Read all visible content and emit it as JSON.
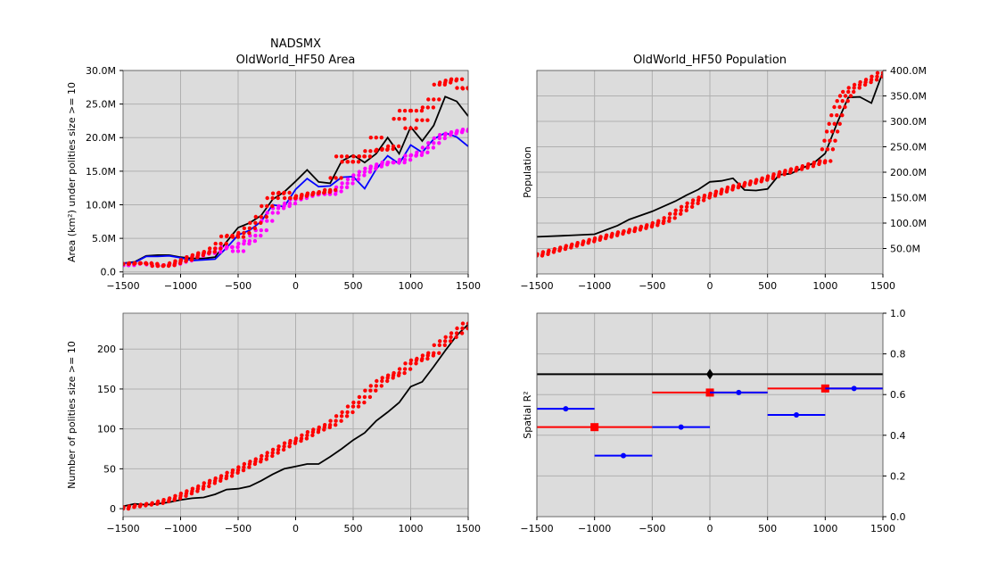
{
  "chart_data": [
    {
      "type": "line",
      "title": "NADSMX",
      "subtitle": "OldWorld_HF50 Area",
      "ylabel": "Area (km$^2$) under polities size >= 10",
      "xlim": [
        -1500,
        1500
      ],
      "ylim": [
        -300000,
        30000000
      ],
      "xticks": [
        -1500,
        -1000,
        -500,
        0,
        500,
        1000,
        1500
      ],
      "yticks": [
        0,
        5000000,
        10000000,
        15000000,
        20000000,
        25000000,
        30000000
      ],
      "yticklabels": [
        "0.0",
        "5.0M",
        "10.0M",
        "15.0M",
        "20.0M",
        "25.0M",
        "30.0M"
      ],
      "grid": true,
      "series": [
        {
          "color": "#000000",
          "style": "line",
          "x": [
            -1500,
            -1400,
            -1300,
            -1200,
            -1100,
            -1000,
            -900,
            -800,
            -700,
            -600,
            -500,
            -400,
            -300,
            -200,
            -100,
            0,
            100,
            200,
            300,
            400,
            500,
            600,
            700,
            800,
            900,
            1000,
            1100,
            1200,
            1300,
            1400,
            1500
          ],
          "y": [
            1300000,
            1500000,
            2400000,
            2500000,
            2500000,
            2200000,
            2000000,
            2000000,
            2200000,
            4500000,
            6600000,
            7300000,
            8400000,
            10800000,
            11900000,
            13500000,
            15200000,
            13400000,
            13200000,
            16500000,
            17400000,
            16300000,
            17600000,
            20000000,
            17600000,
            21600000,
            19500000,
            21800000,
            26100000,
            25400000,
            23200000
          ]
        },
        {
          "color": "#0000ff",
          "style": "line",
          "x": [
            -1500,
            -1400,
            -1300,
            -1200,
            -1100,
            -1000,
            -900,
            -800,
            -700,
            -600,
            -500,
            -400,
            -300,
            -200,
            -100,
            0,
            100,
            200,
            300,
            400,
            500,
            600,
            700,
            800,
            900,
            1000,
            1100,
            1200,
            1300,
            1400,
            1500
          ],
          "y": [
            1300000,
            1400000,
            2300000,
            2300000,
            2400000,
            2100000,
            1700000,
            1800000,
            1900000,
            3600000,
            5500000,
            6200000,
            7500000,
            10000000,
            9700000,
            12300000,
            13900000,
            12700000,
            12800000,
            14100000,
            14200000,
            12400000,
            15300000,
            17300000,
            16100000,
            18900000,
            17800000,
            19800000,
            20700000,
            20100000,
            18700000
          ]
        },
        {
          "color": "#ff00ff",
          "style": "dots",
          "x": [
            -1500,
            -1450,
            -1400,
            -1350,
            -1300,
            -1250,
            -1200,
            -1150,
            -1100,
            -1050,
            -1000,
            -950,
            -900,
            -850,
            -800,
            -750,
            -700,
            -650,
            -600,
            -550,
            -500,
            -450,
            -400,
            -350,
            -300,
            -250,
            -200,
            -150,
            -100,
            -50,
            0,
            50,
            100,
            150,
            200,
            250,
            300,
            350,
            400,
            450,
            500,
            550,
            600,
            650,
            700,
            750,
            800,
            850,
            900,
            950,
            1000,
            1050,
            1100,
            1150,
            1200,
            1250,
            1300,
            1350,
            1400,
            1450,
            1500
          ],
          "y": [
            1000000,
            1000000,
            1200000,
            1300000,
            1300000,
            1100000,
            900000,
            1000000,
            1000000,
            1200000,
            1500000,
            1700000,
            2200000,
            2400000,
            2700000,
            2800000,
            3000000,
            3500000,
            3700000,
            3700000,
            3100000,
            4200000,
            4600000,
            5400000,
            6200000,
            7600000,
            8800000,
            9500000,
            9800000,
            10200000,
            10800000,
            11000000,
            11300000,
            11500000,
            11700000,
            11600000,
            11600000,
            12000000,
            12600000,
            13200000,
            13800000,
            14400000,
            14900000,
            15400000,
            15700000,
            16000000,
            16300000,
            16300000,
            16300000,
            16700000,
            17300000,
            17400000,
            17800000,
            18500000,
            19200000,
            19900000,
            20400000,
            20600000,
            20800000,
            21000000,
            21200000
          ]
        },
        {
          "color": "#ff0000",
          "style": "dots",
          "x": [
            -1500,
            -1450,
            -1400,
            -1350,
            -1300,
            -1250,
            -1200,
            -1150,
            -1100,
            -1050,
            -1000,
            -950,
            -900,
            -850,
            -800,
            -750,
            -700,
            -650,
            -600,
            -550,
            -500,
            -450,
            -400,
            -350,
            -300,
            -250,
            -200,
            -150,
            -100,
            -50,
            0,
            50,
            100,
            150,
            200,
            250,
            300,
            350,
            400,
            450,
            500,
            550,
            600,
            650,
            700,
            750,
            800,
            850,
            900,
            950,
            1000,
            1050,
            1100,
            1150,
            1200,
            1250,
            1300,
            1350,
            1400,
            1450,
            1500
          ],
          "y": [
            1200000,
            1200000,
            1300000,
            1300000,
            1300000,
            1200000,
            900000,
            900000,
            1000000,
            1300000,
            1600000,
            1800000,
            2200000,
            2500000,
            2800000,
            3000000,
            3500000,
            4200000,
            5300000,
            5400000,
            5200000,
            5800000,
            6500000,
            7300000,
            8200000,
            9800000,
            11000000,
            11700000,
            11800000,
            11000000,
            11000000,
            11300000,
            11500000,
            11700000,
            11800000,
            11900000,
            12200000,
            14000000,
            17200000,
            16400000,
            16400000,
            17200000,
            17200000,
            18000000,
            20000000,
            18200000,
            18300000,
            18700000,
            22800000,
            24000000,
            21400000,
            24000000,
            22600000,
            24500000,
            25700000,
            27900000,
            28200000,
            28500000,
            28700000,
            27400000,
            27300000
          ]
        }
      ]
    },
    {
      "type": "line",
      "title": "OldWorld_HF50 Population",
      "ylabel": "Population",
      "xlim": [
        -1500,
        1500
      ],
      "ylim": [
        0,
        400000000
      ],
      "xticks": [
        -1500,
        -1000,
        -500,
        0,
        500,
        1000,
        1500
      ],
      "yticks": [
        50000000,
        100000000,
        150000000,
        200000000,
        250000000,
        300000000,
        350000000,
        400000000
      ],
      "yticklabels": [
        "50.0M",
        "100.0M",
        "150.0M",
        "200.0M",
        "250.0M",
        "300.0M",
        "350.0M",
        "400.0M"
      ],
      "grid": true,
      "series": [
        {
          "color": "#000000",
          "style": "line",
          "x": [
            -1500,
            -1300,
            -1000,
            -800,
            -700,
            -500,
            -300,
            -200,
            -100,
            0,
            100,
            200,
            300,
            400,
            500,
            600,
            700,
            800,
            900,
            1000,
            1100,
            1200,
            1300,
            1400,
            1500
          ],
          "y": [
            73000000,
            75000000,
            78000000,
            95000000,
            107000000,
            123000000,
            143000000,
            155000000,
            166000000,
            181000000,
            183000000,
            188000000,
            165000000,
            164000000,
            167000000,
            195000000,
            197000000,
            208000000,
            218000000,
            237000000,
            295000000,
            347000000,
            348000000,
            336000000,
            397000000
          ]
        },
        {
          "color": "#ff0000",
          "style": "dots",
          "x": [
            -1500,
            -1450,
            -1400,
            -1350,
            -1300,
            -1250,
            -1200,
            -1150,
            -1100,
            -1050,
            -1000,
            -950,
            -900,
            -850,
            -800,
            -750,
            -700,
            -650,
            -600,
            -550,
            -500,
            -450,
            -400,
            -350,
            -300,
            -250,
            -200,
            -150,
            -100,
            -50,
            0,
            50,
            100,
            150,
            200,
            250,
            300,
            350,
            400,
            450,
            500,
            550,
            600,
            650,
            700,
            750,
            800,
            850,
            900,
            950,
            1000,
            1020,
            1040,
            1060,
            1080,
            1100,
            1125,
            1150,
            1175,
            1200,
            1250,
            1300,
            1350,
            1400,
            1450,
            1500
          ],
          "y": [
            36000000,
            39000000,
            43000000,
            46000000,
            49000000,
            52000000,
            55000000,
            58000000,
            61000000,
            64000000,
            67000000,
            70000000,
            73000000,
            76000000,
            79000000,
            82000000,
            84000000,
            87000000,
            90000000,
            93000000,
            96000000,
            100000000,
            104000000,
            110000000,
            118000000,
            125000000,
            132000000,
            139000000,
            145000000,
            150000000,
            154000000,
            158000000,
            162000000,
            166000000,
            170000000,
            173000000,
            176000000,
            179000000,
            182000000,
            185000000,
            188000000,
            192000000,
            196000000,
            200000000,
            203000000,
            206000000,
            209000000,
            212000000,
            216000000,
            219000000,
            222000000,
            245000000,
            262000000,
            280000000,
            295000000,
            312000000,
            328000000,
            340000000,
            350000000,
            358000000,
            366000000,
            372000000,
            377000000,
            382000000,
            388000000,
            395000000
          ]
        }
      ]
    },
    {
      "type": "line",
      "ylabel": "Number of polities size >= 10",
      "xlim": [
        -1500,
        1500
      ],
      "ylim": [
        -10,
        245
      ],
      "xticks": [
        -1500,
        -1000,
        -500,
        0,
        500,
        1000,
        1500
      ],
      "yticks": [
        0,
        50,
        100,
        150,
        200
      ],
      "yticklabels": [
        "0",
        "50",
        "100",
        "150",
        "200"
      ],
      "grid": true,
      "series": [
        {
          "color": "#000000",
          "style": "line",
          "x": [
            -1500,
            -1400,
            -1300,
            -1200,
            -1100,
            -1000,
            -900,
            -800,
            -700,
            -600,
            -500,
            -400,
            -300,
            -200,
            -100,
            0,
            100,
            200,
            300,
            400,
            500,
            600,
            700,
            800,
            900,
            1000,
            1100,
            1200,
            1300,
            1400,
            1500
          ],
          "y": [
            3,
            6,
            5,
            6,
            8,
            11,
            13,
            14,
            18,
            24,
            25,
            28,
            35,
            43,
            50,
            53,
            56,
            56,
            65,
            75,
            86,
            95,
            110,
            121,
            133,
            153,
            159,
            178,
            198,
            217,
            231
          ]
        },
        {
          "color": "#ff0000",
          "style": "dots",
          "x": [
            -1500,
            -1450,
            -1400,
            -1350,
            -1300,
            -1250,
            -1200,
            -1150,
            -1100,
            -1050,
            -1000,
            -950,
            -900,
            -850,
            -800,
            -750,
            -700,
            -650,
            -600,
            -550,
            -500,
            -450,
            -400,
            -350,
            -300,
            -250,
            -200,
            -150,
            -100,
            -50,
            0,
            50,
            100,
            150,
            200,
            250,
            300,
            350,
            400,
            450,
            500,
            550,
            600,
            650,
            700,
            750,
            800,
            850,
            900,
            950,
            1000,
            1050,
            1100,
            1150,
            1200,
            1250,
            1300,
            1350,
            1400,
            1450,
            1500
          ],
          "y": [
            0,
            2,
            3,
            4,
            5,
            6,
            7,
            9,
            11,
            13,
            16,
            19,
            22,
            25,
            28,
            32,
            35,
            38,
            41,
            45,
            48,
            52,
            56,
            59,
            62,
            66,
            70,
            74,
            78,
            82,
            85,
            88,
            92,
            96,
            99,
            102,
            105,
            110,
            116,
            121,
            128,
            133,
            140,
            148,
            154,
            160,
            164,
            167,
            170,
            175,
            182,
            186,
            188,
            192,
            195,
            205,
            210,
            215,
            220,
            226,
            232
          ]
        }
      ]
    },
    {
      "type": "errorbar",
      "ylabel": "Spatial R$^2$",
      "xlim": [
        -1500,
        1500
      ],
      "ylim": [
        0.0,
        1.0
      ],
      "xticks": [
        -1500,
        -1000,
        -500,
        0,
        500,
        1000,
        1500
      ],
      "yticks": [
        0.0,
        0.2,
        0.4,
        0.6,
        0.8,
        1.0
      ],
      "yticklabels": [
        "0.0",
        "0.2",
        "0.4",
        "0.6",
        "0.8",
        "1.0"
      ],
      "grid": true,
      "series": [
        {
          "color": "#000000",
          "marker": "diamond",
          "segments": [
            {
              "x0": -1500,
              "x1": 1500,
              "xc": 0,
              "y": 0.7
            }
          ]
        },
        {
          "color": "#ff0000",
          "marker": "square",
          "segments": [
            {
              "x0": -1500,
              "x1": -500,
              "xc": -1000,
              "y": 0.44
            },
            {
              "x0": -500,
              "x1": 500,
              "xc": 0,
              "y": 0.61
            },
            {
              "x0": 500,
              "x1": 1500,
              "xc": 1000,
              "y": 0.63
            }
          ]
        },
        {
          "color": "#0000ff",
          "marker": "dot",
          "segments": [
            {
              "x0": -1500,
              "x1": -1000,
              "xc": -1250,
              "y": 0.53
            },
            {
              "x0": -1000,
              "x1": -500,
              "xc": -750,
              "y": 0.3
            },
            {
              "x0": -500,
              "x1": 0,
              "xc": -250,
              "y": 0.44
            },
            {
              "x0": 0,
              "x1": 500,
              "xc": 250,
              "y": 0.61
            },
            {
              "x0": 500,
              "x1": 1000,
              "xc": 750,
              "y": 0.5
            },
            {
              "x0": 1000,
              "x1": 1500,
              "xc": 1250,
              "y": 0.63
            }
          ]
        }
      ]
    }
  ]
}
